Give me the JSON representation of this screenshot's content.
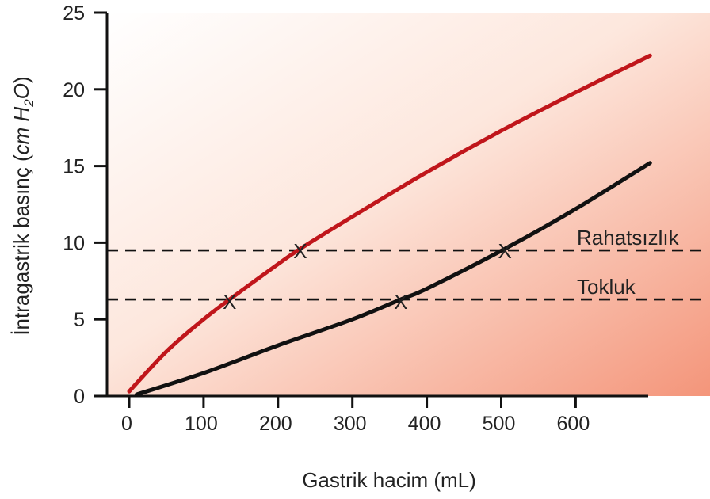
{
  "chart_data": {
    "type": "line",
    "title": "",
    "xlabel": "Gastrik hacim (mL)",
    "ylabel_parts": [
      "İntragastrik basınç (",
      "cm H",
      "2",
      "O",
      ")"
    ],
    "xlim": [
      0,
      700
    ],
    "ylim": [
      0,
      25
    ],
    "x_ticks": [
      0,
      100,
      200,
      300,
      400,
      500,
      600
    ],
    "y_ticks": [
      0,
      5,
      10,
      15,
      20,
      25
    ],
    "grid": false,
    "background": "gradient white to salmon",
    "series": [
      {
        "color": "#c0161b",
        "x": [
          0,
          50,
          100,
          135,
          200,
          230,
          300,
          400,
          500,
          600,
          700
        ],
        "y": [
          0.3,
          2.9,
          5.0,
          6.3,
          8.6,
          9.6,
          11.7,
          14.6,
          17.3,
          19.8,
          22.2
        ]
      },
      {
        "color": "#111111",
        "x": [
          10,
          100,
          200,
          300,
          365,
          400,
          505,
          600,
          700
        ],
        "y": [
          0.1,
          1.5,
          3.3,
          5.0,
          6.3,
          7.0,
          9.6,
          12.2,
          15.2
        ]
      }
    ],
    "thresholds": [
      {
        "label": "Rahatsızlık",
        "y": 9.5
      },
      {
        "label": "Tokluk",
        "y": 6.3
      }
    ],
    "markers": [
      {
        "x": 135,
        "y": 6.3,
        "symbol": "X"
      },
      {
        "x": 230,
        "y": 9.6,
        "symbol": "X"
      },
      {
        "x": 365,
        "y": 6.3,
        "symbol": "X"
      },
      {
        "x": 505,
        "y": 9.6,
        "symbol": "X"
      }
    ],
    "colors": {
      "bg_light": "#ffffff",
      "bg_dark": "#f4957a",
      "axis": "#111111",
      "dash": "#111111"
    }
  }
}
